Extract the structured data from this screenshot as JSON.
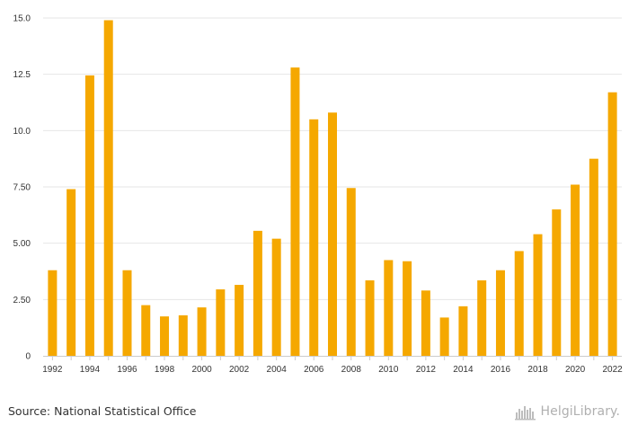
{
  "chart_data": {
    "type": "bar",
    "x": [
      1992,
      1993,
      1994,
      1995,
      1996,
      1997,
      1998,
      1999,
      2000,
      2001,
      2002,
      2003,
      2004,
      2005,
      2006,
      2007,
      2008,
      2009,
      2010,
      2011,
      2012,
      2013,
      2014,
      2015,
      2016,
      2017,
      2018,
      2019,
      2020,
      2021,
      2022
    ],
    "values": [
      3.8,
      7.4,
      12.45,
      14.9,
      3.8,
      2.25,
      1.75,
      1.8,
      2.15,
      2.95,
      3.15,
      5.55,
      5.2,
      12.8,
      10.5,
      10.8,
      7.45,
      3.35,
      4.25,
      4.2,
      2.9,
      1.7,
      2.2,
      3.35,
      3.8,
      4.65,
      5.4,
      6.5,
      7.6,
      8.75,
      11.7
    ],
    "x_tick_labels": [
      "1992",
      "1994",
      "1996",
      "1998",
      "2000",
      "2002",
      "2004",
      "2006",
      "2008",
      "2010",
      "2012",
      "2014",
      "2016",
      "2018",
      "2020",
      "2022"
    ],
    "y_ticks": [
      0,
      2.5,
      5,
      7.5,
      10,
      12.5,
      15
    ],
    "y_tick_labels": [
      "0",
      "2.50",
      "5.00",
      "7.50",
      "10.0",
      "12.5",
      "15.0"
    ],
    "ylim": [
      0,
      15
    ],
    "grid": true,
    "title": "",
    "xlabel": "",
    "ylabel": "",
    "bar_color": "#f5a800"
  },
  "footer": {
    "source": "Source: National Statistical Office",
    "brand": "HelgiLibrary."
  },
  "icons": {
    "brand_logo": "city-skyline-icon"
  },
  "colors": {
    "grid": "#e6e6e6",
    "axis": "#cccccc",
    "text": "#333333",
    "brand": "#b0b0b0"
  }
}
